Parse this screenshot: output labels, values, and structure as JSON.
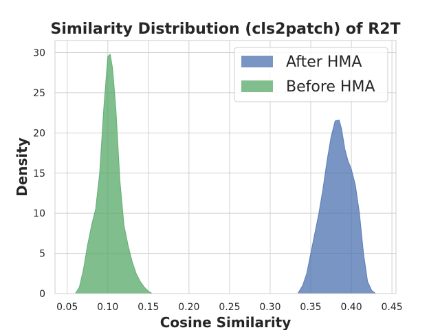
{
  "chart_data": {
    "type": "area",
    "title": "Similarity Distribution (cls2patch) of R2T",
    "xlabel": "Cosine Similarity",
    "ylabel": "Density",
    "xlim": [
      0.035,
      0.455
    ],
    "ylim": [
      0,
      31.5
    ],
    "xticks": [
      0.05,
      0.1,
      0.15,
      0.2,
      0.25,
      0.3,
      0.35,
      0.4,
      0.45
    ],
    "xtick_labels": [
      "0.05",
      "0.10",
      "0.15",
      "0.20",
      "0.25",
      "0.30",
      "0.35",
      "0.40",
      "0.45"
    ],
    "yticks": [
      0,
      5,
      10,
      15,
      20,
      25,
      30
    ],
    "ytick_labels": [
      "0",
      "5",
      "10",
      "15",
      "20",
      "25",
      "30"
    ],
    "grid": true,
    "legend_position": "top-right",
    "series": [
      {
        "name": "After HMA",
        "color": "#4c72b0",
        "x": [
          0.334,
          0.34,
          0.345,
          0.35,
          0.355,
          0.36,
          0.365,
          0.37,
          0.375,
          0.38,
          0.385,
          0.388,
          0.392,
          0.396,
          0.4,
          0.405,
          0.41,
          0.415,
          0.42,
          0.425,
          0.43
        ],
        "y": [
          0.0,
          1.0,
          2.5,
          5.0,
          7.5,
          10.0,
          13.0,
          16.5,
          19.5,
          21.5,
          21.6,
          20.5,
          18.0,
          16.5,
          15.5,
          13.5,
          10.0,
          5.0,
          1.5,
          0.4,
          0.0
        ]
      },
      {
        "name": "Before HMA",
        "color": "#55a868",
        "x": [
          0.06,
          0.065,
          0.07,
          0.075,
          0.08,
          0.085,
          0.09,
          0.095,
          0.1,
          0.103,
          0.106,
          0.11,
          0.115,
          0.12,
          0.125,
          0.13,
          0.135,
          0.14,
          0.145,
          0.15,
          0.155
        ],
        "y": [
          0.0,
          0.8,
          3.0,
          6.0,
          8.5,
          10.5,
          15.0,
          23.0,
          29.5,
          29.8,
          28.0,
          23.0,
          14.0,
          8.5,
          6.0,
          4.0,
          2.5,
          1.5,
          0.8,
          0.3,
          0.0
        ]
      }
    ]
  }
}
